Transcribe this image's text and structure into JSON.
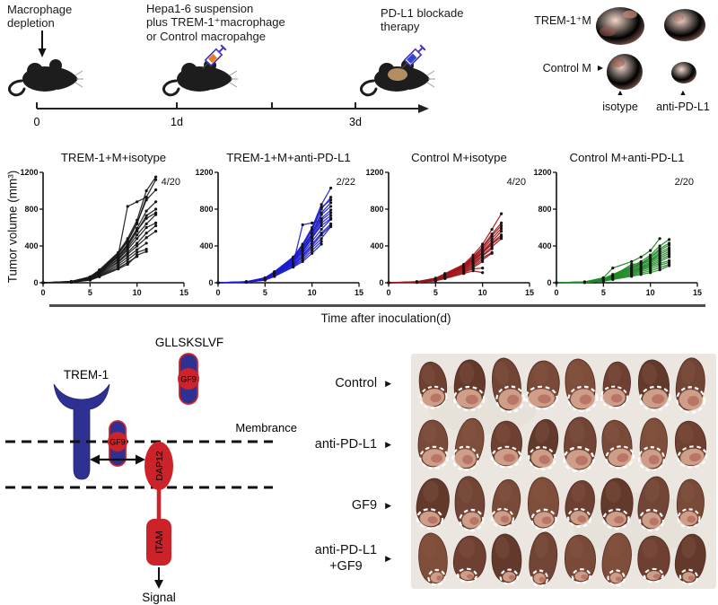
{
  "header": {
    "step1": "Macrophage\ndepletion",
    "step2": "Hepa1-6 suspension\nplus TREM-1⁺macrophage\nor Control macropahge",
    "step3": "PD-L1 blockade\ntherapy",
    "tick0": "0",
    "tick1": "1d",
    "tick3": "3d"
  },
  "tumor_panel": {
    "row1": "TREM-1⁺M",
    "row2": "Control M",
    "col1": "isotype",
    "col2": "anti-PD-L1"
  },
  "icons": {
    "right_marker": "▶",
    "up_marker": "▲"
  },
  "chart_data": {
    "type": "line",
    "shared": {
      "ylabel": "Tumor volume (mm³)",
      "xlabel": "Time after inoculation(d)",
      "ylim": [
        0,
        1200
      ],
      "xlim": [
        0,
        15
      ],
      "yticks": [
        0,
        400,
        800,
        1200
      ],
      "xticks": [
        0,
        5,
        10,
        15
      ],
      "days": [
        0,
        3,
        5,
        6,
        8,
        9,
        10,
        11,
        12
      ],
      "marker_color": "#141414",
      "grid": false,
      "legend": "none"
    },
    "panels": [
      {
        "title": "TREM-1+M+isotype",
        "annotation": "4/20",
        "color": "#1a1a1a",
        "series": [
          [
            0,
            15,
            65,
            140,
            330,
            480,
            680,
            1000,
            1150
          ],
          [
            0,
            12,
            60,
            130,
            310,
            450,
            640,
            930,
            1120
          ],
          [
            0,
            14,
            62,
            135,
            320,
            460,
            650,
            900,
            1010
          ],
          [
            0,
            10,
            55,
            120,
            300,
            830,
            880,
            930
          ],
          [
            0,
            12,
            58,
            125,
            290,
            420,
            590,
            780,
            880
          ],
          [
            0,
            10,
            52,
            115,
            280,
            400,
            560,
            730,
            800
          ],
          [
            0,
            11,
            54,
            118,
            285,
            410,
            570,
            700,
            760
          ],
          [
            0,
            9,
            48,
            105,
            260,
            380,
            520,
            640,
            740
          ],
          [
            0,
            10,
            50,
            110,
            250,
            360,
            480,
            600,
            650
          ],
          [
            0,
            8,
            42,
            95,
            230,
            330,
            430,
            540,
            620
          ],
          [
            0,
            8,
            45,
            100,
            220,
            310,
            400,
            490,
            560
          ],
          [
            0,
            7,
            38,
            85,
            200,
            280,
            360,
            430
          ],
          [
            0,
            6,
            32,
            78,
            180,
            250,
            330,
            365
          ],
          [
            0,
            6,
            30,
            72,
            160,
            220,
            285
          ],
          [
            0,
            5,
            28,
            65,
            150,
            200,
            300,
            340
          ]
        ]
      },
      {
        "title": "TREM-1+M+anti-PD-L1",
        "annotation": "2/22",
        "color": "#1c1ccc",
        "series": [
          [
            0,
            12,
            55,
            120,
            280,
            420,
            600,
            850,
            1030
          ],
          [
            0,
            10,
            50,
            115,
            270,
            400,
            570,
            800,
            930
          ],
          [
            0,
            11,
            52,
            118,
            275,
            410,
            580,
            820,
            900
          ],
          [
            0,
            10,
            48,
            110,
            260,
            380,
            540,
            760,
            870
          ],
          [
            0,
            9,
            46,
            105,
            250,
            370,
            520,
            740,
            830
          ],
          [
            0,
            10,
            47,
            108,
            255,
            375,
            530,
            700,
            790
          ],
          [
            0,
            9,
            44,
            100,
            240,
            350,
            500,
            680,
            760
          ],
          [
            0,
            8,
            42,
            95,
            230,
            340,
            480,
            650,
            730
          ],
          [
            0,
            9,
            43,
            98,
            235,
            345,
            490,
            620,
            700
          ],
          [
            0,
            8,
            40,
            90,
            220,
            320,
            450,
            580,
            690
          ],
          [
            0,
            8,
            38,
            88,
            210,
            630,
            650,
            680
          ],
          [
            0,
            7,
            36,
            85,
            205,
            300,
            420,
            540,
            640
          ],
          [
            0,
            7,
            35,
            82,
            200,
            290,
            400,
            520,
            620
          ],
          [
            0,
            6,
            32,
            78,
            190,
            270,
            380,
            480,
            610
          ],
          [
            0,
            6,
            30,
            72,
            180,
            250,
            350,
            450
          ],
          [
            0,
            5,
            28,
            68,
            170,
            230,
            320,
            420
          ]
        ]
      },
      {
        "title": "Control M+isotype",
        "annotation": "4/20",
        "color": "#9e151c",
        "series": [
          [
            0,
            12,
            50,
            100,
            200,
            300,
            420,
            580,
            750
          ],
          [
            0,
            10,
            45,
            95,
            190,
            280,
            390,
            530,
            650
          ],
          [
            0,
            10,
            44,
            92,
            185,
            270,
            380,
            510,
            620
          ],
          [
            0,
            9,
            42,
            88,
            180,
            260,
            360,
            480,
            590
          ],
          [
            0,
            9,
            40,
            85,
            175,
            250,
            340,
            450,
            560
          ],
          [
            0,
            8,
            38,
            82,
            170,
            240,
            330,
            430,
            520
          ],
          [
            0,
            8,
            37,
            80,
            165,
            230,
            320,
            420,
            500
          ],
          [
            0,
            7,
            35,
            75,
            155,
            215,
            300,
            390,
            480
          ],
          [
            0,
            7,
            34,
            72,
            150,
            210,
            290,
            370
          ],
          [
            0,
            6,
            30,
            65,
            140,
            195,
            270,
            330
          ],
          [
            0,
            6,
            28,
            60,
            130,
            180,
            250,
            320
          ],
          [
            0,
            5,
            25,
            55,
            120,
            165,
            230
          ],
          [
            0,
            5,
            22,
            50,
            110,
            150,
            160
          ],
          [
            0,
            4,
            20,
            45,
            100,
            130,
            110
          ]
        ]
      },
      {
        "title": "Control M+anti-PD-L1",
        "annotation": "2/20",
        "color": "#1f8a28",
        "series": [
          [
            0,
            10,
            55,
            160,
            230,
            280,
            350,
            480
          ],
          [
            0,
            9,
            45,
            90,
            180,
            230,
            300,
            400,
            470
          ],
          [
            0,
            8,
            42,
            85,
            170,
            210,
            280,
            370,
            430
          ],
          [
            0,
            8,
            40,
            80,
            160,
            200,
            270,
            350,
            410
          ],
          [
            0,
            7,
            38,
            75,
            150,
            190,
            250,
            330,
            380
          ],
          [
            0,
            7,
            36,
            72,
            200,
            210,
            240,
            310,
            360
          ],
          [
            0,
            6,
            34,
            68,
            140,
            175,
            230,
            290,
            340
          ],
          [
            0,
            6,
            32,
            65,
            130,
            165,
            215,
            270,
            320
          ],
          [
            0,
            5,
            30,
            60,
            120,
            155,
            200,
            250,
            300
          ],
          [
            0,
            5,
            28,
            55,
            110,
            145,
            185,
            230,
            280
          ],
          [
            0,
            4,
            25,
            50,
            100,
            135,
            170,
            210,
            240
          ],
          [
            0,
            4,
            22,
            45,
            90,
            120,
            150,
            190,
            220
          ],
          [
            0,
            3,
            20,
            40,
            80,
            105,
            130,
            165,
            200
          ],
          [
            0,
            3,
            18,
            35,
            70,
            90,
            110,
            140,
            185
          ]
        ]
      }
    ]
  },
  "diagram": {
    "peptide": "GLLSKSLVF",
    "receptor": "TREM-1",
    "gf9": "GF9",
    "membrane": "Membrance",
    "dap12": "DAP12",
    "itam": "ITAM",
    "signal": "Signal",
    "blue": "#2e3192",
    "red": "#cc2229"
  },
  "liver_panel": {
    "rows": [
      {
        "label": "Control",
        "livers": 8,
        "tumor_scale": 1.0
      },
      {
        "label": "anti-PD-L1",
        "livers": 8,
        "tumor_scale": 0.95
      },
      {
        "label": "GF9",
        "livers": 8,
        "tumor_scale": 0.78
      },
      {
        "label": "anti-PD-L1\n+GF9",
        "livers": 8,
        "tumor_scale": 0.52
      }
    ]
  }
}
